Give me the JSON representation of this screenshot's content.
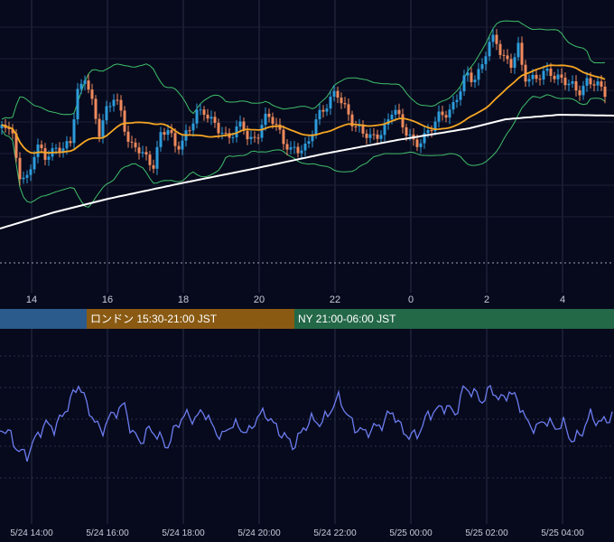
{
  "chart_data": [
    {
      "type": "candlestick",
      "title": "",
      "x_ticks": [
        "14",
        "16",
        "18",
        "20",
        "22",
        "0",
        "2",
        "4"
      ],
      "indicators": [
        "moving-average-short",
        "moving-average-long",
        "bollinger-bands"
      ],
      "colors": {
        "up": "#2d9cdb",
        "down": "#f08a5d",
        "ma_short": "#f5a623",
        "ma_long": "#ffffff",
        "bands": "#3fbf6a"
      },
      "grid": true
    },
    {
      "type": "line",
      "title": "",
      "x_ticks": [
        "5/24 14:00",
        "5/24 16:00",
        "5/24 18:00",
        "5/24 20:00",
        "5/24 22:00",
        "5/25 00:00",
        "5/25 02:00",
        "5/25 04:00"
      ],
      "color": "#6c7cf0",
      "grid": true
    }
  ],
  "sessions": [
    {
      "label": "",
      "color": "#2b5a8c"
    },
    {
      "label": "ロンドン 15:30-21:00 JST",
      "color": "#8a5a12"
    },
    {
      "label": "NY 21:00-06:00 JST",
      "color": "#236847"
    }
  ]
}
